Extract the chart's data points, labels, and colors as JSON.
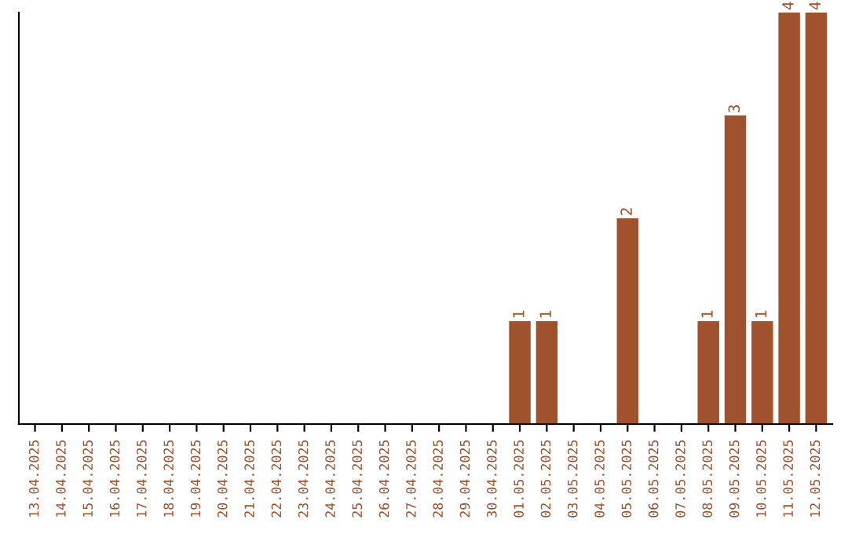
{
  "chart_data": {
    "type": "bar",
    "categories": [
      "13.04.2025",
      "14.04.2025",
      "15.04.2025",
      "16.04.2025",
      "17.04.2025",
      "18.04.2025",
      "19.04.2025",
      "20.04.2025",
      "21.04.2025",
      "22.04.2025",
      "23.04.2025",
      "24.04.2025",
      "25.04.2025",
      "26.04.2025",
      "27.04.2025",
      "28.04.2025",
      "29.04.2025",
      "30.04.2025",
      "01.05.2025",
      "02.05.2025",
      "03.05.2025",
      "04.05.2025",
      "05.05.2025",
      "06.05.2025",
      "07.05.2025",
      "08.05.2025",
      "09.05.2025",
      "10.05.2025",
      "11.05.2025",
      "12.05.2025"
    ],
    "values": [
      null,
      null,
      null,
      null,
      null,
      null,
      null,
      null,
      null,
      null,
      null,
      null,
      null,
      null,
      null,
      null,
      null,
      null,
      1,
      1,
      null,
      null,
      2,
      null,
      null,
      1,
      3,
      1,
      4,
      4
    ],
    "value_labels": [
      null,
      null,
      null,
      null,
      null,
      null,
      null,
      null,
      null,
      null,
      null,
      null,
      null,
      null,
      null,
      null,
      null,
      null,
      "1",
      "1",
      null,
      null,
      "2",
      null,
      null,
      "1",
      "3",
      "1",
      "4",
      "4"
    ],
    "color": "#a0522d",
    "grid": false,
    "legend": false
  }
}
